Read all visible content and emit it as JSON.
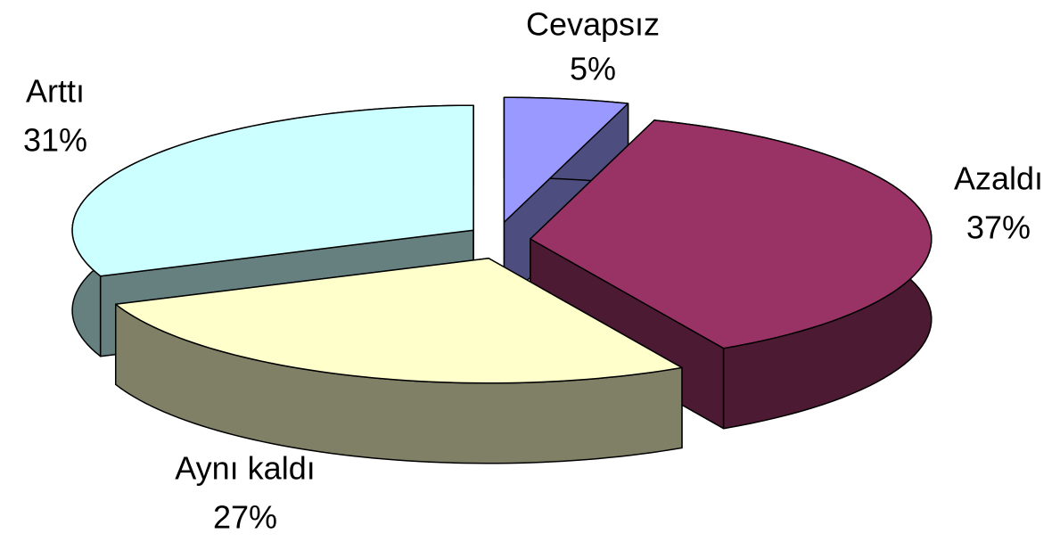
{
  "chart_data": {
    "type": "pie",
    "categories": [
      "Cevapsız",
      "Azaldı",
      "Aynı kaldı",
      "Arttı"
    ],
    "values": [
      5,
      37,
      27,
      31
    ],
    "value_labels": [
      "5%",
      "37%",
      "27%",
      "31%"
    ],
    "colors": [
      "#9999ff",
      "#993366",
      "#ffffcc",
      "#ccffff"
    ],
    "side_colors": [
      "#4d4d80",
      "#4d1a33",
      "#808066",
      "#668080"
    ]
  }
}
